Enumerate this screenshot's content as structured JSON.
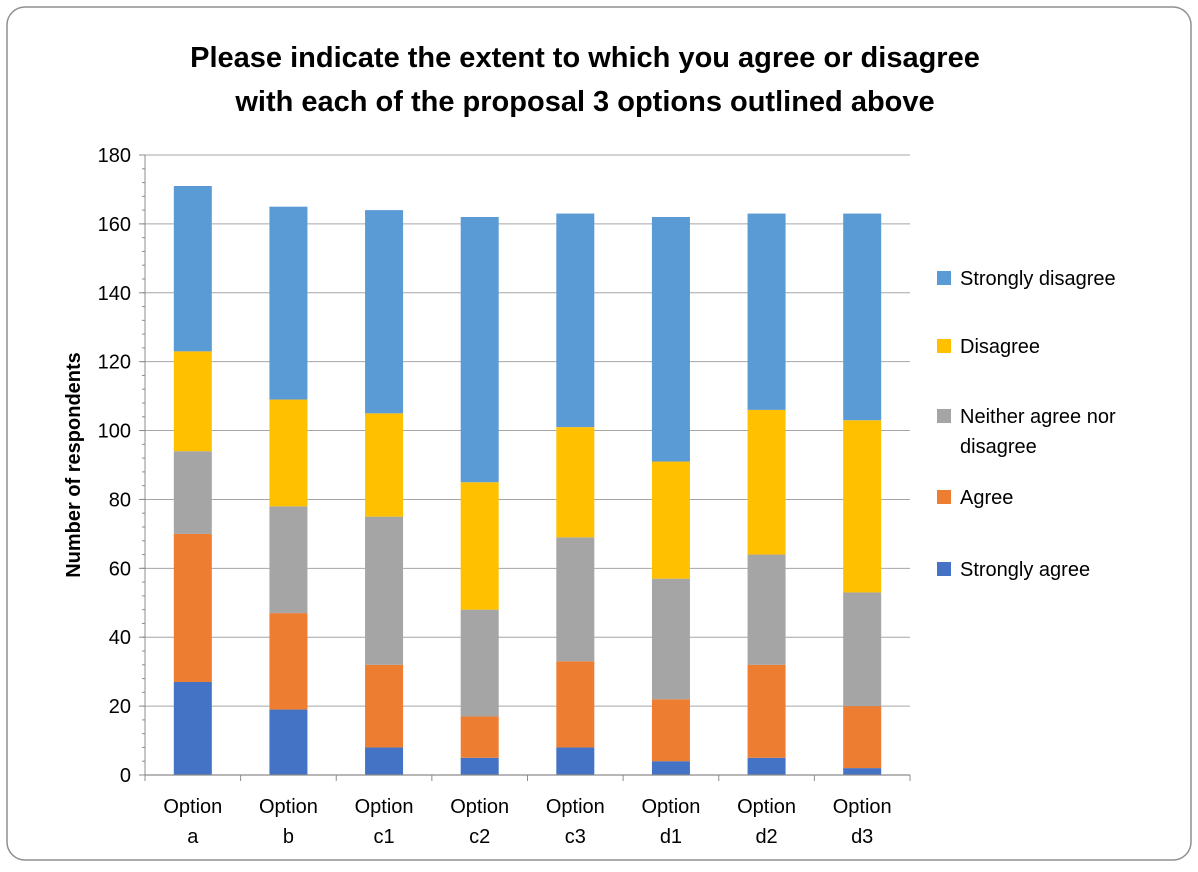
{
  "chart_data": {
    "type": "bar",
    "stacked": true,
    "title": "Please indicate the extent to which you agree or disagree with each of the proposal 3 options outlined above",
    "title_lines": [
      "Please indicate the extent to which you agree or disagree",
      "with each of the proposal 3 options outlined above"
    ],
    "ylabel": "Number of respondents",
    "ylim": [
      0,
      180
    ],
    "yticks": [
      "0",
      "20",
      "40",
      "60",
      "80",
      "100",
      "120",
      "140",
      "160",
      "180"
    ],
    "grid": true,
    "legend_position": "right",
    "categories": [
      "Option a",
      "Option b",
      "Option c1",
      "Option c2",
      "Option c3",
      "Option d1",
      "Option d2",
      "Option d3"
    ],
    "category_lines": [
      [
        "Option",
        "a"
      ],
      [
        "Option",
        "b"
      ],
      [
        "Option",
        "c1"
      ],
      [
        "Option",
        "c2"
      ],
      [
        "Option",
        "c3"
      ],
      [
        "Option",
        "d1"
      ],
      [
        "Option",
        "d2"
      ],
      [
        "Option",
        "d3"
      ]
    ],
    "series": [
      {
        "name": "Strongly agree",
        "color": "#4472c4",
        "values": [
          27,
          19,
          8,
          5,
          8,
          4,
          5,
          2
        ]
      },
      {
        "name": "Agree",
        "color": "#ed7d31",
        "values": [
          43,
          28,
          24,
          12,
          25,
          18,
          27,
          18
        ]
      },
      {
        "name": "Neither agree nor disagree",
        "color": "#a5a5a5",
        "values": [
          24,
          31,
          43,
          31,
          36,
          35,
          32,
          33
        ]
      },
      {
        "name": "Disagree",
        "color": "#ffc000",
        "values": [
          29,
          31,
          30,
          37,
          32,
          34,
          42,
          50
        ]
      },
      {
        "name": "Strongly disagree",
        "color": "#5b9bd5",
        "values": [
          48,
          56,
          59,
          77,
          62,
          71,
          57,
          60
        ]
      }
    ],
    "legend": [
      {
        "series": "Strongly disagree",
        "lines": [
          "Strongly disagree"
        ]
      },
      {
        "series": "Disagree",
        "lines": [
          "Disagree"
        ]
      },
      {
        "series": "Neither agree nor disagree",
        "lines": [
          "Neither agree nor",
          "disagree"
        ]
      },
      {
        "series": "Agree",
        "lines": [
          "Agree"
        ]
      },
      {
        "series": "Strongly agree",
        "lines": [
          "Strongly agree"
        ]
      }
    ]
  }
}
